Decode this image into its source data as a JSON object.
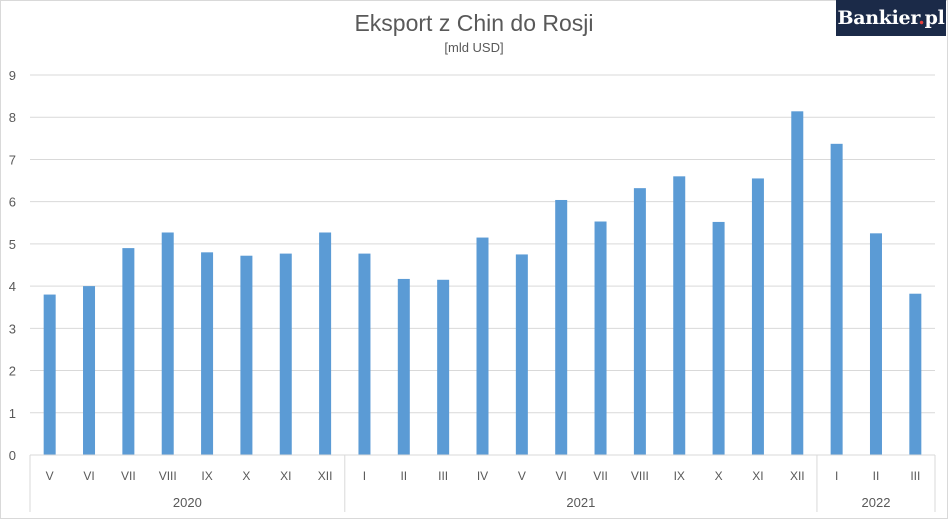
{
  "logo": {
    "text": "Bankier",
    "dot": ".",
    "suffix": "pl"
  },
  "chart_data": {
    "type": "bar",
    "title": "Eksport z Chin do Rosji",
    "subtitle": "[mld USD]",
    "ylim": [
      0,
      9
    ],
    "yticks": [
      0,
      1,
      2,
      3,
      4,
      5,
      6,
      7,
      8,
      9
    ],
    "grid": true,
    "legend": "none",
    "bar_color": "#5b9bd5",
    "categories": [
      "V",
      "VI",
      "VII",
      "VIII",
      "IX",
      "X",
      "XI",
      "XII",
      "I",
      "II",
      "III",
      "IV",
      "V",
      "VI",
      "VII",
      "VIII",
      "IX",
      "X",
      "XI",
      "XII",
      "I",
      "II",
      "III"
    ],
    "values": [
      3.8,
      4.0,
      4.9,
      5.27,
      4.8,
      4.72,
      4.77,
      5.27,
      4.77,
      4.17,
      4.15,
      5.15,
      4.75,
      6.04,
      5.53,
      6.32,
      6.6,
      5.52,
      6.55,
      8.14,
      7.37,
      5.25,
      3.82
    ],
    "groups": [
      {
        "label": "2020",
        "count": 8
      },
      {
        "label": "2021",
        "count": 12
      },
      {
        "label": "2022",
        "count": 3
      }
    ]
  }
}
